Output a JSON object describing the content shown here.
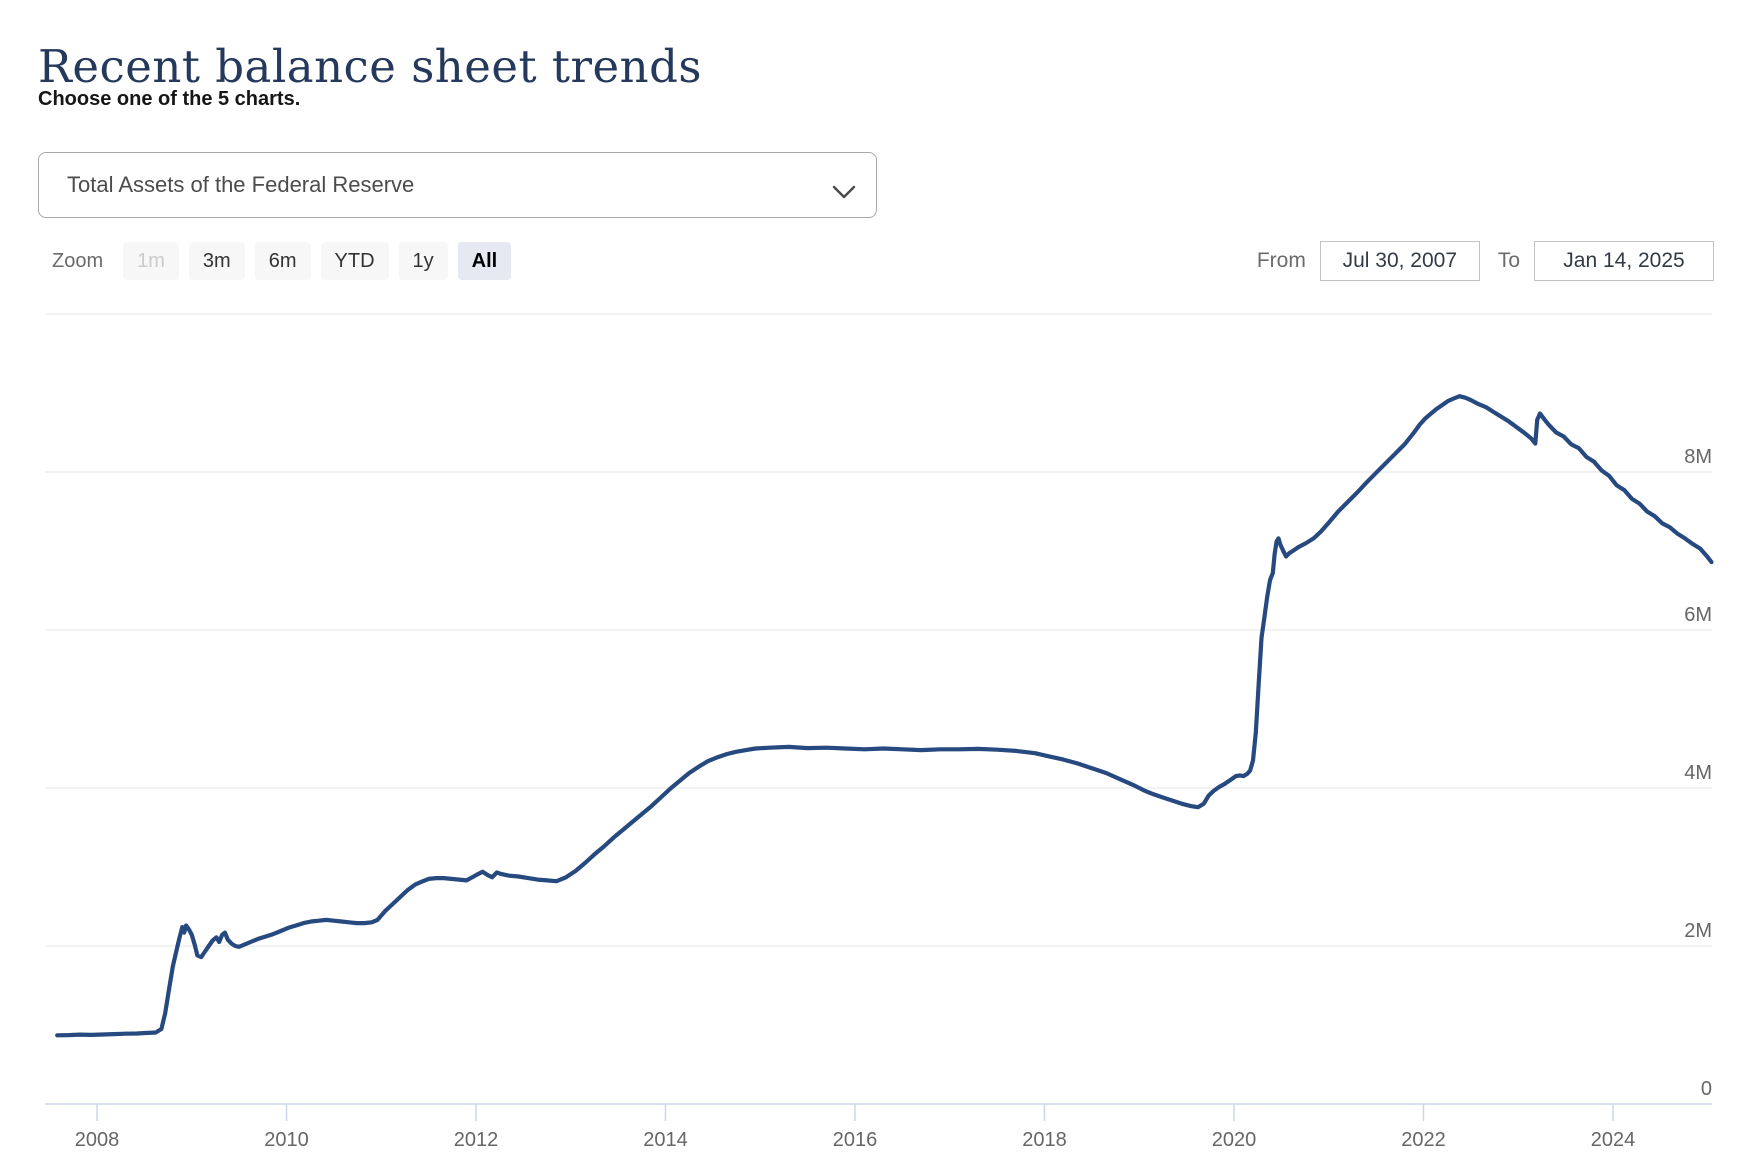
{
  "page": {
    "title": "Recent balance sheet trends",
    "subtitle": "Choose one of the 5 charts."
  },
  "chart_picker": {
    "selected": "Total Assets of the Federal Reserve",
    "chevron_icon": "chevron-down"
  },
  "controls": {
    "zoom_label": "Zoom",
    "zoom_buttons": [
      {
        "label": "1m",
        "state": "disabled"
      },
      {
        "label": "3m",
        "state": "normal"
      },
      {
        "label": "6m",
        "state": "normal"
      },
      {
        "label": "YTD",
        "state": "normal"
      },
      {
        "label": "1y",
        "state": "normal"
      },
      {
        "label": "All",
        "state": "selected"
      }
    ],
    "range": {
      "from_label": "From",
      "from_value": "Jul 30, 2007",
      "to_label": "To",
      "to_value": "Jan 14, 2025"
    }
  },
  "colors": {
    "line": "#26497f",
    "title": "#24395b",
    "grid": "#e6e6e6",
    "axis": "#ccd6eb",
    "axis_label": "#666666",
    "button_bg": "#f7f7f7",
    "button_selected_bg": "#e6e9f2",
    "button_disabled_text": "#cbcbcb"
  },
  "chart_data": {
    "type": "line",
    "series_name": "Total Assets of the Federal Reserve",
    "x_unit": "decimal_year",
    "y_unit": "millions of U.S. dollars; axis tick M = 1,000,000 millions ($1 trillion)",
    "x_range": [
      2007.58,
      2025.04
    ],
    "y_range": [
      0,
      10
    ],
    "x_ticks": [
      2008,
      2010,
      2012,
      2014,
      2016,
      2018,
      2020,
      2022,
      2024
    ],
    "y_ticks": [
      {
        "value": 0,
        "label": "0"
      },
      {
        "value": 2,
        "label": "2M"
      },
      {
        "value": 4,
        "label": "4M"
      },
      {
        "value": 6,
        "label": "6M"
      },
      {
        "value": 8,
        "label": "8M"
      }
    ],
    "y_gridlines": [
      2,
      4,
      6,
      8,
      10
    ],
    "grid": true,
    "legend": "none",
    "points": [
      [
        2007.58,
        0.87
      ],
      [
        2007.7,
        0.872
      ],
      [
        2007.82,
        0.878
      ],
      [
        2007.94,
        0.875
      ],
      [
        2008.06,
        0.88
      ],
      [
        2008.18,
        0.885
      ],
      [
        2008.3,
        0.89
      ],
      [
        2008.42,
        0.893
      ],
      [
        2008.54,
        0.9
      ],
      [
        2008.62,
        0.905
      ],
      [
        2008.68,
        0.95
      ],
      [
        2008.72,
        1.15
      ],
      [
        2008.76,
        1.45
      ],
      [
        2008.8,
        1.74
      ],
      [
        2008.84,
        1.95
      ],
      [
        2008.87,
        2.1
      ],
      [
        2008.9,
        2.24
      ],
      [
        2008.92,
        2.17
      ],
      [
        2008.94,
        2.26
      ],
      [
        2008.97,
        2.21
      ],
      [
        2009.0,
        2.14
      ],
      [
        2009.03,
        2.02
      ],
      [
        2009.06,
        1.88
      ],
      [
        2009.1,
        1.86
      ],
      [
        2009.14,
        1.93
      ],
      [
        2009.18,
        2.0
      ],
      [
        2009.22,
        2.07
      ],
      [
        2009.26,
        2.11
      ],
      [
        2009.29,
        2.05
      ],
      [
        2009.32,
        2.14
      ],
      [
        2009.35,
        2.17
      ],
      [
        2009.38,
        2.08
      ],
      [
        2009.42,
        2.03
      ],
      [
        2009.46,
        2.0
      ],
      [
        2009.5,
        1.99
      ],
      [
        2009.56,
        2.02
      ],
      [
        2009.62,
        2.05
      ],
      [
        2009.7,
        2.09
      ],
      [
        2009.78,
        2.12
      ],
      [
        2009.86,
        2.15
      ],
      [
        2009.94,
        2.19
      ],
      [
        2010.02,
        2.23
      ],
      [
        2010.1,
        2.26
      ],
      [
        2010.18,
        2.29
      ],
      [
        2010.26,
        2.31
      ],
      [
        2010.34,
        2.32
      ],
      [
        2010.42,
        2.33
      ],
      [
        2010.5,
        2.32
      ],
      [
        2010.58,
        2.31
      ],
      [
        2010.66,
        2.3
      ],
      [
        2010.74,
        2.29
      ],
      [
        2010.82,
        2.29
      ],
      [
        2010.9,
        2.3
      ],
      [
        2010.96,
        2.33
      ],
      [
        2011.04,
        2.44
      ],
      [
        2011.12,
        2.53
      ],
      [
        2011.2,
        2.62
      ],
      [
        2011.28,
        2.71
      ],
      [
        2011.36,
        2.78
      ],
      [
        2011.44,
        2.82
      ],
      [
        2011.5,
        2.85
      ],
      [
        2011.58,
        2.86
      ],
      [
        2011.66,
        2.86
      ],
      [
        2011.74,
        2.85
      ],
      [
        2011.82,
        2.84
      ],
      [
        2011.9,
        2.83
      ],
      [
        2011.96,
        2.87
      ],
      [
        2012.02,
        2.91
      ],
      [
        2012.07,
        2.94
      ],
      [
        2012.12,
        2.9
      ],
      [
        2012.17,
        2.87
      ],
      [
        2012.22,
        2.93
      ],
      [
        2012.27,
        2.91
      ],
      [
        2012.35,
        2.89
      ],
      [
        2012.45,
        2.88
      ],
      [
        2012.55,
        2.86
      ],
      [
        2012.65,
        2.84
      ],
      [
        2012.75,
        2.83
      ],
      [
        2012.85,
        2.82
      ],
      [
        2012.95,
        2.87
      ],
      [
        2013.05,
        2.95
      ],
      [
        2013.15,
        3.05
      ],
      [
        2013.25,
        3.16
      ],
      [
        2013.35,
        3.26
      ],
      [
        2013.45,
        3.37
      ],
      [
        2013.55,
        3.47
      ],
      [
        2013.65,
        3.57
      ],
      [
        2013.75,
        3.67
      ],
      [
        2013.85,
        3.77
      ],
      [
        2013.95,
        3.88
      ],
      [
        2014.05,
        3.99
      ],
      [
        2014.15,
        4.09
      ],
      [
        2014.25,
        4.19
      ],
      [
        2014.35,
        4.27
      ],
      [
        2014.45,
        4.34
      ],
      [
        2014.55,
        4.39
      ],
      [
        2014.65,
        4.43
      ],
      [
        2014.75,
        4.46
      ],
      [
        2014.85,
        4.48
      ],
      [
        2014.95,
        4.5
      ],
      [
        2015.1,
        4.51
      ],
      [
        2015.3,
        4.52
      ],
      [
        2015.5,
        4.505
      ],
      [
        2015.7,
        4.51
      ],
      [
        2015.9,
        4.5
      ],
      [
        2016.1,
        4.49
      ],
      [
        2016.3,
        4.5
      ],
      [
        2016.5,
        4.49
      ],
      [
        2016.7,
        4.48
      ],
      [
        2016.9,
        4.49
      ],
      [
        2017.1,
        4.49
      ],
      [
        2017.3,
        4.495
      ],
      [
        2017.5,
        4.485
      ],
      [
        2017.7,
        4.47
      ],
      [
        2017.9,
        4.44
      ],
      [
        2018.05,
        4.4
      ],
      [
        2018.2,
        4.36
      ],
      [
        2018.35,
        4.31
      ],
      [
        2018.5,
        4.25
      ],
      [
        2018.65,
        4.19
      ],
      [
        2018.8,
        4.11
      ],
      [
        2018.95,
        4.03
      ],
      [
        2019.05,
        3.97
      ],
      [
        2019.15,
        3.92
      ],
      [
        2019.25,
        3.88
      ],
      [
        2019.35,
        3.84
      ],
      [
        2019.45,
        3.8
      ],
      [
        2019.55,
        3.77
      ],
      [
        2019.62,
        3.757
      ],
      [
        2019.68,
        3.8
      ],
      [
        2019.73,
        3.9
      ],
      [
        2019.78,
        3.96
      ],
      [
        2019.84,
        4.01
      ],
      [
        2019.9,
        4.05
      ],
      [
        2019.96,
        4.1
      ],
      [
        2020.02,
        4.15
      ],
      [
        2020.06,
        4.16
      ],
      [
        2020.1,
        4.15
      ],
      [
        2020.14,
        4.18
      ],
      [
        2020.17,
        4.22
      ],
      [
        2020.2,
        4.35
      ],
      [
        2020.23,
        4.7
      ],
      [
        2020.26,
        5.3
      ],
      [
        2020.29,
        5.9
      ],
      [
        2020.32,
        6.15
      ],
      [
        2020.35,
        6.42
      ],
      [
        2020.38,
        6.63
      ],
      [
        2020.41,
        6.72
      ],
      [
        2020.43,
        6.97
      ],
      [
        2020.45,
        7.12
      ],
      [
        2020.47,
        7.16
      ],
      [
        2020.49,
        7.08
      ],
      [
        2020.52,
        7.0
      ],
      [
        2020.55,
        6.93
      ],
      [
        2020.58,
        6.97
      ],
      [
        2020.62,
        7.0
      ],
      [
        2020.68,
        7.05
      ],
      [
        2020.76,
        7.1
      ],
      [
        2020.84,
        7.16
      ],
      [
        2020.92,
        7.25
      ],
      [
        2021.0,
        7.36
      ],
      [
        2021.1,
        7.5
      ],
      [
        2021.2,
        7.62
      ],
      [
        2021.3,
        7.74
      ],
      [
        2021.4,
        7.87
      ],
      [
        2021.5,
        7.99
      ],
      [
        2021.6,
        8.11
      ],
      [
        2021.7,
        8.23
      ],
      [
        2021.8,
        8.35
      ],
      [
        2021.9,
        8.5
      ],
      [
        2021.96,
        8.6
      ],
      [
        2022.02,
        8.68
      ],
      [
        2022.08,
        8.74
      ],
      [
        2022.14,
        8.8
      ],
      [
        2022.2,
        8.85
      ],
      [
        2022.26,
        8.9
      ],
      [
        2022.32,
        8.93
      ],
      [
        2022.38,
        8.96
      ],
      [
        2022.44,
        8.94
      ],
      [
        2022.5,
        8.91
      ],
      [
        2022.58,
        8.86
      ],
      [
        2022.66,
        8.82
      ],
      [
        2022.74,
        8.76
      ],
      [
        2022.82,
        8.7
      ],
      [
        2022.9,
        8.64
      ],
      [
        2022.98,
        8.57
      ],
      [
        2023.06,
        8.5
      ],
      [
        2023.14,
        8.42
      ],
      [
        2023.18,
        8.36
      ],
      [
        2023.2,
        8.66
      ],
      [
        2023.23,
        8.74
      ],
      [
        2023.28,
        8.66
      ],
      [
        2023.32,
        8.6
      ],
      [
        2023.4,
        8.5
      ],
      [
        2023.48,
        8.45
      ],
      [
        2023.56,
        8.35
      ],
      [
        2023.64,
        8.3
      ],
      [
        2023.72,
        8.19
      ],
      [
        2023.8,
        8.13
      ],
      [
        2023.88,
        8.02
      ],
      [
        2023.96,
        7.95
      ],
      [
        2024.04,
        7.83
      ],
      [
        2024.12,
        7.77
      ],
      [
        2024.2,
        7.66
      ],
      [
        2024.28,
        7.6
      ],
      [
        2024.36,
        7.5
      ],
      [
        2024.44,
        7.44
      ],
      [
        2024.52,
        7.35
      ],
      [
        2024.6,
        7.3
      ],
      [
        2024.68,
        7.22
      ],
      [
        2024.76,
        7.16
      ],
      [
        2024.84,
        7.09
      ],
      [
        2024.92,
        7.03
      ],
      [
        2025.0,
        6.92
      ],
      [
        2025.04,
        6.86
      ]
    ]
  }
}
